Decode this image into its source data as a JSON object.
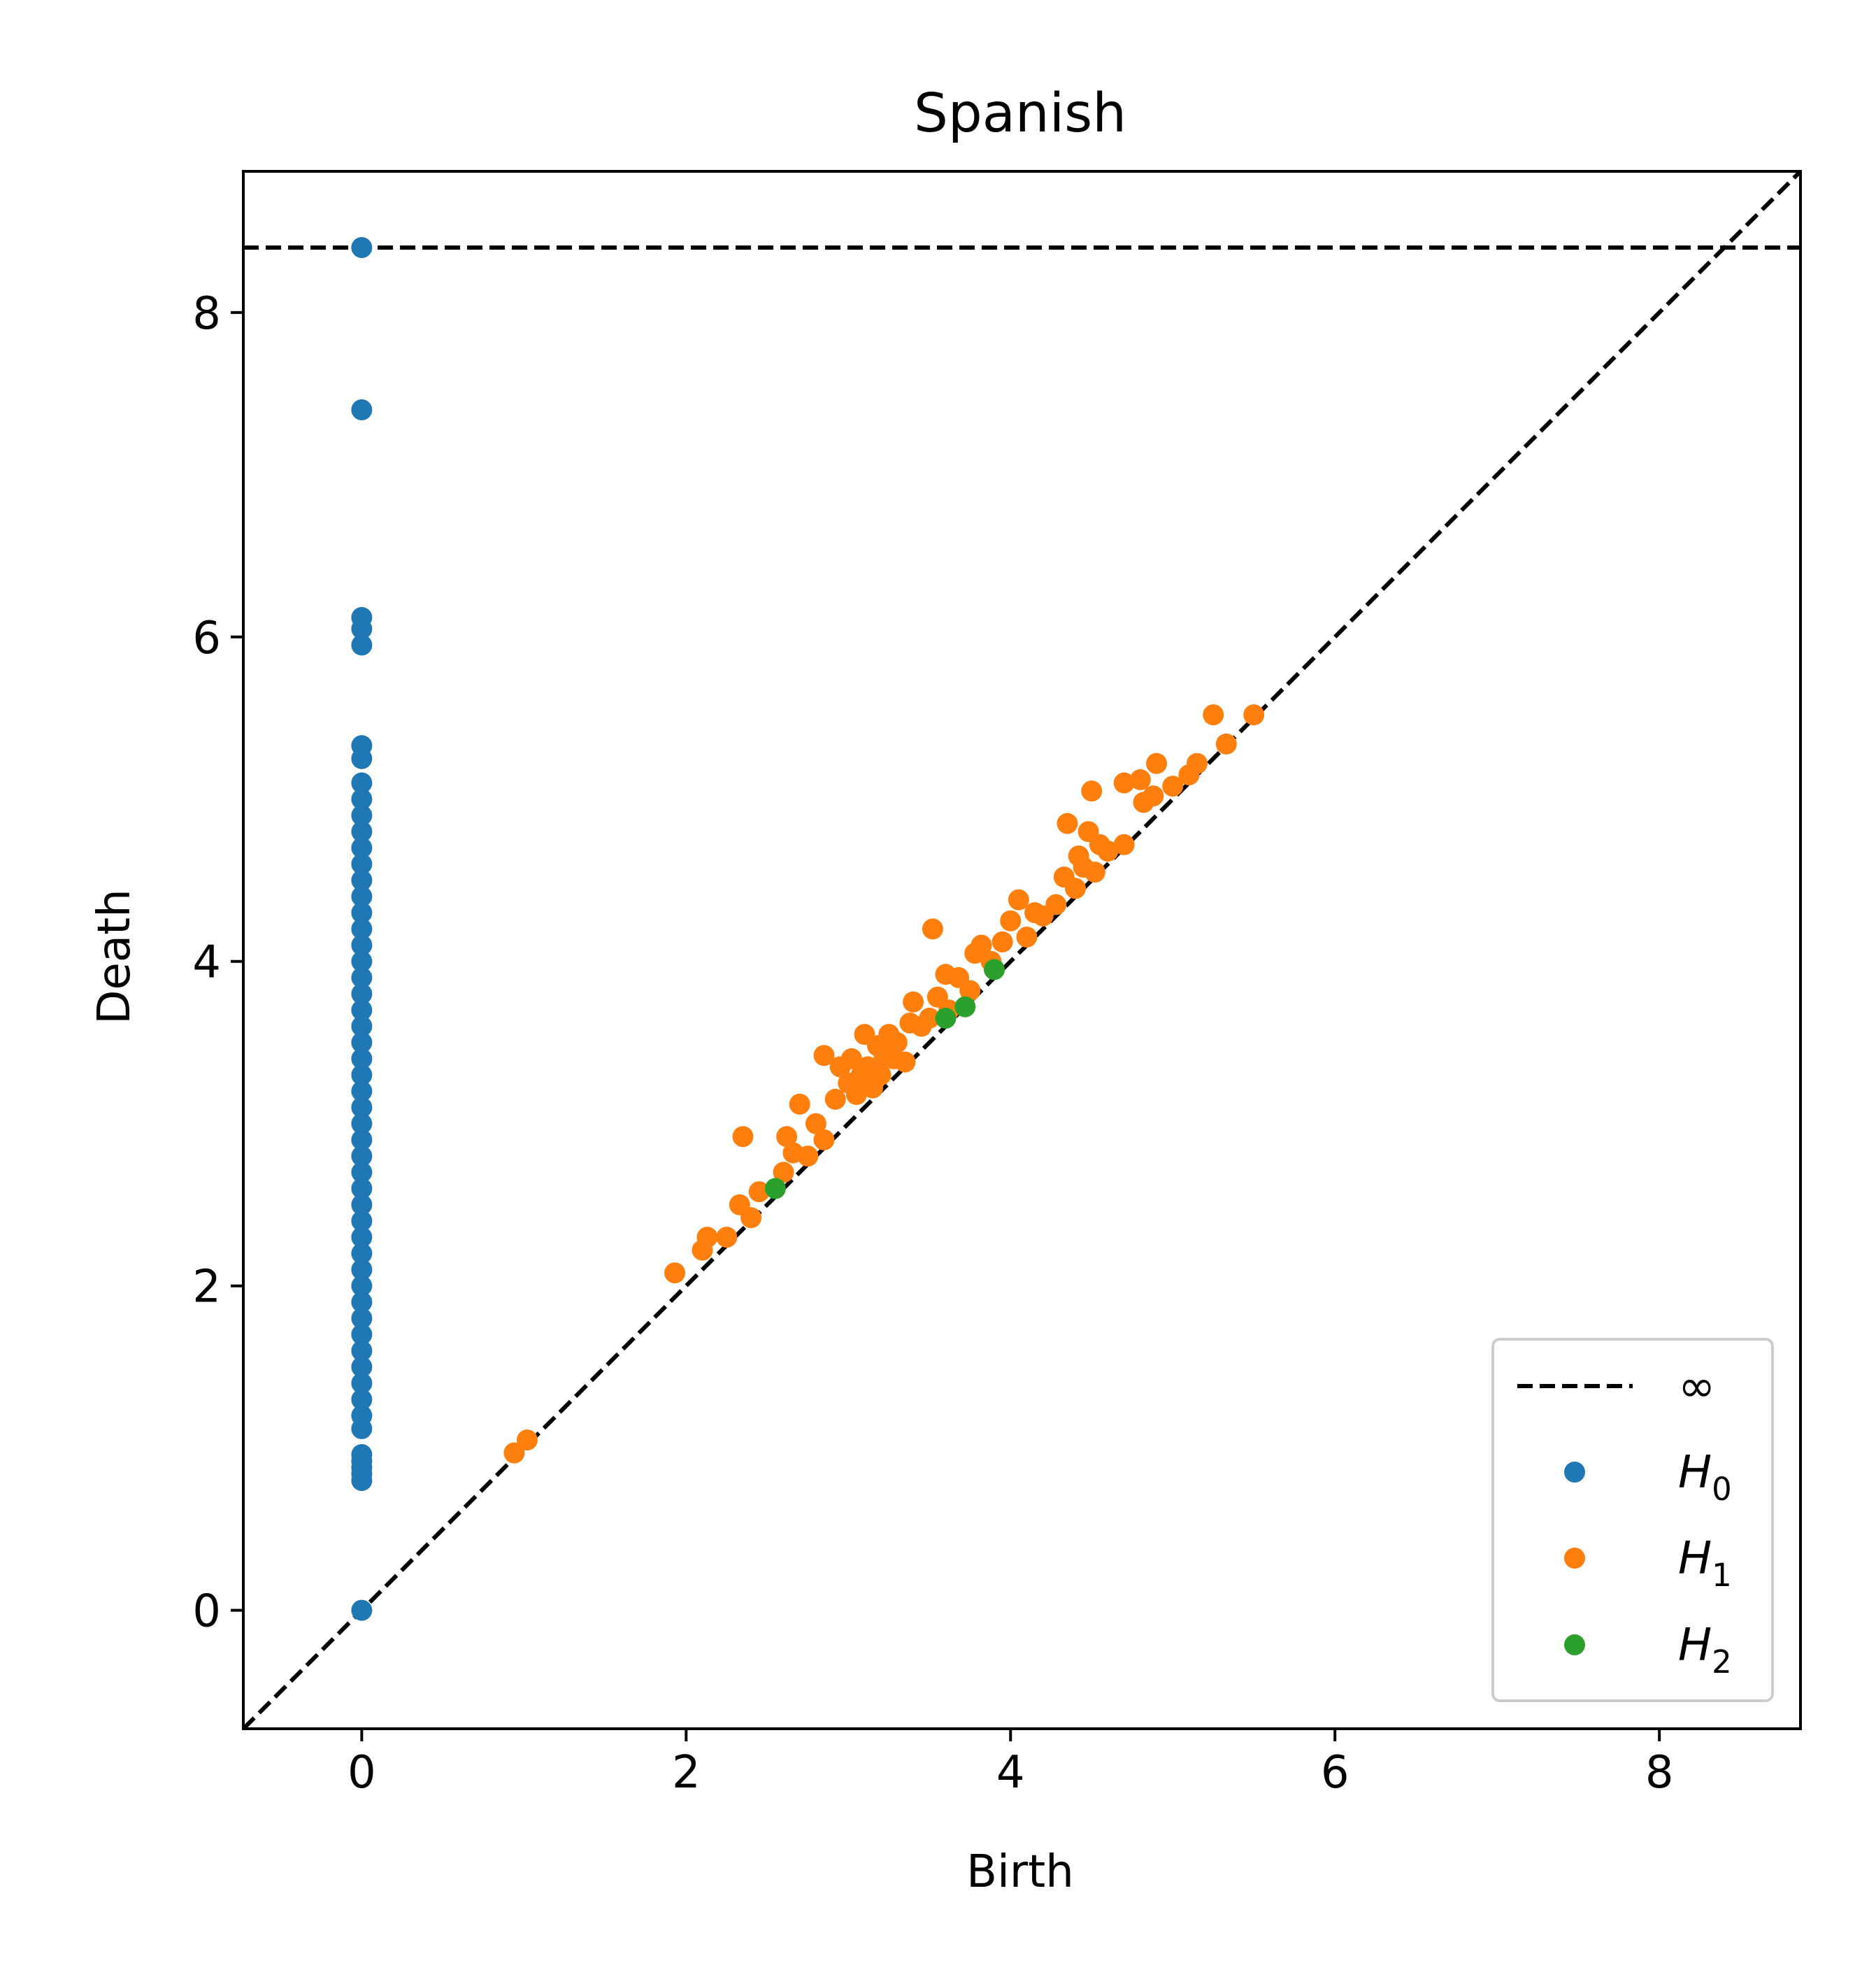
{
  "chart_data": {
    "type": "scatter",
    "title": "Spanish",
    "xlabel": "Birth",
    "ylabel": "Death",
    "xlim": [
      -0.73,
      8.87
    ],
    "ylim": [
      -0.73,
      8.87
    ],
    "xticks": [
      0,
      2,
      4,
      6,
      8
    ],
    "yticks": [
      0,
      2,
      4,
      6,
      8
    ],
    "xtick_labels": [
      "0",
      "2",
      "4",
      "6",
      "8"
    ],
    "ytick_labels": [
      "0",
      "2",
      "4",
      "6",
      "8"
    ],
    "grid": false,
    "legend_position": "lower-right",
    "infinity_level": 8.4,
    "reference_lines": [
      {
        "label": "∞",
        "kind": "horizontal",
        "value": 8.4,
        "style": "dashed",
        "color": "#000000"
      },
      {
        "label": "",
        "kind": "diagonal",
        "style": "dashed",
        "color": "#000000"
      }
    ],
    "legend": [
      {
        "kind": "line",
        "main": "∞",
        "sub": "",
        "color": "#000000"
      },
      {
        "kind": "marker",
        "main": "H",
        "sub": "0",
        "color": "#1f77b4"
      },
      {
        "kind": "marker",
        "main": "H",
        "sub": "1",
        "color": "#ff7f0e"
      },
      {
        "kind": "marker",
        "main": "H",
        "sub": "2",
        "color": "#2ca02c"
      }
    ],
    "series": [
      {
        "name": "H0",
        "color": "#1f77b4",
        "points": [
          [
            0,
            0
          ],
          [
            0,
            0.8
          ],
          [
            0,
            0.84
          ],
          [
            0,
            0.88
          ],
          [
            0,
            0.92
          ],
          [
            0,
            0.96
          ],
          [
            0,
            1.12
          ],
          [
            0,
            1.2
          ],
          [
            0,
            1.3
          ],
          [
            0,
            1.4
          ],
          [
            0,
            1.5
          ],
          [
            0,
            1.6
          ],
          [
            0,
            1.7
          ],
          [
            0,
            1.8
          ],
          [
            0,
            1.9
          ],
          [
            0,
            2.0
          ],
          [
            0,
            2.1
          ],
          [
            0,
            2.2
          ],
          [
            0,
            2.3
          ],
          [
            0,
            2.4
          ],
          [
            0,
            2.5
          ],
          [
            0,
            2.6
          ],
          [
            0,
            2.7
          ],
          [
            0,
            2.8
          ],
          [
            0,
            2.9
          ],
          [
            0,
            3.0
          ],
          [
            0,
            3.1
          ],
          [
            0,
            3.2
          ],
          [
            0,
            3.3
          ],
          [
            0,
            3.4
          ],
          [
            0,
            3.5
          ],
          [
            0,
            3.6
          ],
          [
            0,
            3.7
          ],
          [
            0,
            3.8
          ],
          [
            0,
            3.9
          ],
          [
            0,
            4.0
          ],
          [
            0,
            4.1
          ],
          [
            0,
            4.2
          ],
          [
            0,
            4.3
          ],
          [
            0,
            4.4
          ],
          [
            0,
            4.5
          ],
          [
            0,
            4.6
          ],
          [
            0,
            4.7
          ],
          [
            0,
            4.8
          ],
          [
            0,
            4.9
          ],
          [
            0,
            5.0
          ],
          [
            0,
            5.1
          ],
          [
            0,
            5.25
          ],
          [
            0,
            5.33
          ],
          [
            0,
            5.95
          ],
          [
            0,
            6.05
          ],
          [
            0,
            6.12
          ],
          [
            0,
            7.4
          ],
          [
            0,
            8.4
          ]
        ]
      },
      {
        "name": "H1",
        "color": "#ff7f0e",
        "points": [
          [
            0.94,
            0.97
          ],
          [
            1.02,
            1.05
          ],
          [
            1.93,
            2.08
          ],
          [
            2.1,
            2.22
          ],
          [
            2.13,
            2.3
          ],
          [
            2.25,
            2.3
          ],
          [
            2.33,
            2.5
          ],
          [
            2.35,
            2.92
          ],
          [
            2.4,
            2.42
          ],
          [
            2.45,
            2.58
          ],
          [
            2.6,
            2.7
          ],
          [
            2.62,
            2.92
          ],
          [
            2.66,
            2.82
          ],
          [
            2.7,
            3.12
          ],
          [
            2.75,
            2.8
          ],
          [
            2.8,
            3.0
          ],
          [
            2.85,
            2.9
          ],
          [
            2.85,
            3.42
          ],
          [
            2.92,
            3.15
          ],
          [
            2.95,
            3.35
          ],
          [
            3.0,
            3.25
          ],
          [
            3.02,
            3.4
          ],
          [
            3.05,
            3.18
          ],
          [
            3.08,
            3.3
          ],
          [
            3.1,
            3.55
          ],
          [
            3.12,
            3.35
          ],
          [
            3.15,
            3.22
          ],
          [
            3.18,
            3.48
          ],
          [
            3.2,
            3.3
          ],
          [
            3.22,
            3.42
          ],
          [
            3.25,
            3.55
          ],
          [
            3.28,
            3.4
          ],
          [
            3.3,
            3.5
          ],
          [
            3.35,
            3.38
          ],
          [
            3.38,
            3.62
          ],
          [
            3.4,
            3.75
          ],
          [
            3.45,
            3.6
          ],
          [
            3.5,
            3.65
          ],
          [
            3.52,
            4.2
          ],
          [
            3.55,
            3.78
          ],
          [
            3.6,
            3.92
          ],
          [
            3.62,
            3.7
          ],
          [
            3.68,
            3.9
          ],
          [
            3.75,
            3.82
          ],
          [
            3.78,
            4.05
          ],
          [
            3.82,
            4.1
          ],
          [
            3.88,
            4.0
          ],
          [
            3.95,
            4.12
          ],
          [
            4.0,
            4.25
          ],
          [
            4.05,
            4.38
          ],
          [
            4.1,
            4.15
          ],
          [
            4.15,
            4.3
          ],
          [
            4.2,
            4.28
          ],
          [
            4.28,
            4.35
          ],
          [
            4.33,
            4.52
          ],
          [
            4.35,
            4.85
          ],
          [
            4.4,
            4.45
          ],
          [
            4.42,
            4.65
          ],
          [
            4.45,
            4.58
          ],
          [
            4.48,
            4.8
          ],
          [
            4.5,
            5.05
          ],
          [
            4.52,
            4.55
          ],
          [
            4.55,
            4.72
          ],
          [
            4.6,
            4.68
          ],
          [
            4.7,
            4.72
          ],
          [
            4.7,
            5.1
          ],
          [
            4.8,
            5.12
          ],
          [
            4.82,
            4.98
          ],
          [
            4.88,
            5.02
          ],
          [
            4.9,
            5.22
          ],
          [
            5.0,
            5.08
          ],
          [
            5.1,
            5.15
          ],
          [
            5.15,
            5.22
          ],
          [
            5.25,
            5.52
          ],
          [
            5.33,
            5.34
          ],
          [
            5.5,
            5.52
          ]
        ]
      },
      {
        "name": "H2",
        "color": "#2ca02c",
        "points": [
          [
            2.55,
            2.6
          ],
          [
            3.6,
            3.65
          ],
          [
            3.72,
            3.72
          ],
          [
            3.9,
            3.95
          ]
        ]
      }
    ]
  }
}
